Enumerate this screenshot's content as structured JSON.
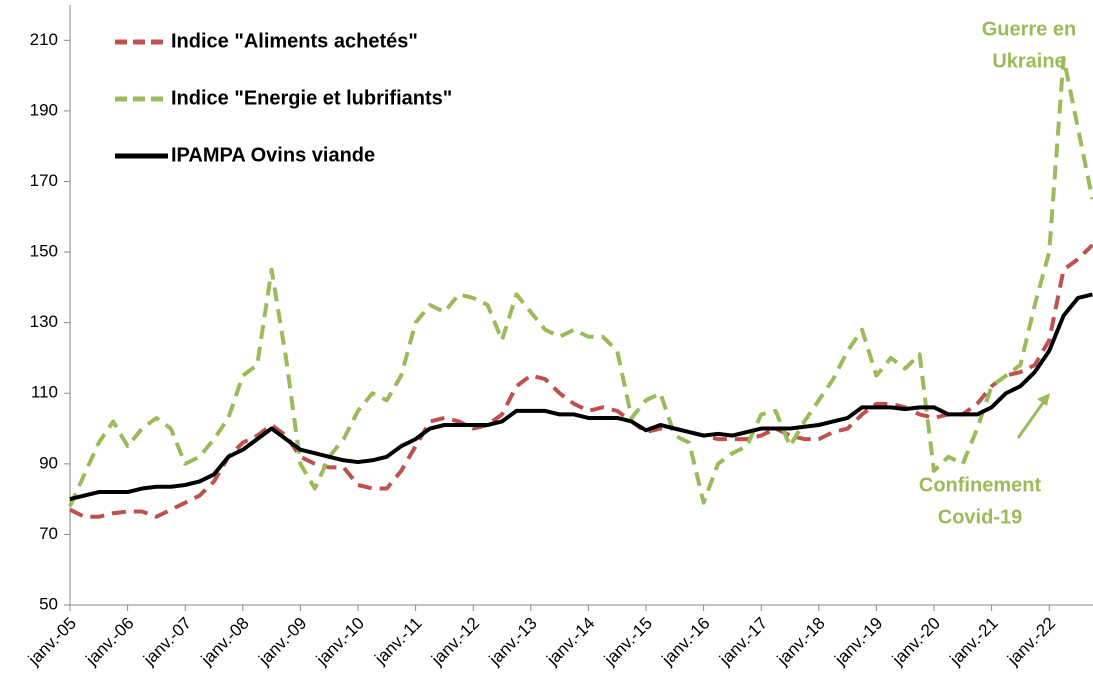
{
  "chart_data": {
    "type": "line",
    "categories": [
      "janv.-05",
      null,
      null,
      null,
      "janv.-06",
      null,
      null,
      null,
      "janv.-07",
      null,
      null,
      null,
      "janv.-08",
      null,
      null,
      null,
      "janv.-09",
      null,
      null,
      null,
      "janv.-10",
      null,
      null,
      null,
      "janv.-11",
      null,
      null,
      null,
      "janv.-12",
      null,
      null,
      null,
      "janv.-13",
      null,
      null,
      null,
      "janv.-14",
      null,
      null,
      null,
      "janv.-15",
      null,
      null,
      null,
      "janv.-16",
      null,
      null,
      null,
      "janv.-17",
      null,
      null,
      null,
      "janv.-18",
      null,
      null,
      null,
      "janv.-19",
      null,
      null,
      null,
      "janv.-20",
      null,
      null,
      null,
      "janv.-21",
      null,
      null,
      null,
      "janv.-22",
      null,
      null,
      null
    ],
    "series": [
      {
        "name": "Indice \"Aliments achetés\"",
        "color": "#c0504d",
        "dash": true,
        "values": [
          77,
          75,
          75,
          76,
          76.5,
          76.5,
          75,
          77,
          79,
          81,
          85,
          92,
          96,
          98,
          101,
          98,
          92,
          90,
          89,
          89,
          84,
          83,
          83,
          88,
          95,
          102,
          103,
          102,
          100,
          101,
          104,
          112,
          115,
          114,
          110,
          107,
          105,
          106,
          105,
          102,
          99,
          100,
          100,
          99,
          98,
          97,
          97,
          97,
          98,
          100,
          98,
          97,
          97,
          99,
          100,
          104,
          107,
          107,
          106,
          104,
          103,
          104,
          104,
          107,
          112,
          115,
          116,
          118,
          125,
          145,
          148,
          152
        ]
      },
      {
        "name": "Indice \"Energie et lubrifiants\"",
        "color": "#9bbb59",
        "dash": true,
        "values": [
          78,
          87,
          96,
          102,
          95,
          100,
          103,
          100,
          90,
          92,
          97,
          103,
          115,
          118,
          145,
          120,
          90,
          83,
          92,
          97,
          105,
          110,
          108,
          115,
          130,
          135,
          133,
          138,
          137,
          135,
          125,
          138,
          133,
          128,
          126,
          128,
          126,
          126,
          122,
          103,
          108,
          110,
          98,
          96,
          79,
          90,
          93,
          95,
          104,
          105,
          95,
          102,
          108,
          114,
          122,
          128,
          115,
          120,
          117,
          121,
          88,
          92,
          90,
          100,
          112,
          115,
          118,
          135,
          150,
          205,
          185,
          165
        ]
      },
      {
        "name": "IPAMPA Ovins viande",
        "color": "#000000",
        "dash": false,
        "values": [
          80,
          81,
          82,
          82,
          82,
          83,
          83.5,
          83.5,
          84,
          85,
          87,
          92,
          94,
          97,
          100,
          97,
          94,
          93,
          92,
          91,
          90.5,
          91,
          92,
          95,
          97,
          100,
          101,
          101,
          101,
          101,
          102,
          105,
          105,
          105,
          104,
          104,
          103,
          103,
          103,
          102,
          99.5,
          101,
          100,
          99,
          98,
          98.5,
          98,
          99,
          100,
          100,
          100,
          100.5,
          101,
          102,
          103,
          106,
          106,
          106,
          105.5,
          106,
          106,
          104,
          104,
          104,
          106,
          110,
          112,
          116,
          122,
          132,
          137,
          138
        ]
      }
    ],
    "ylim": [
      50,
      220
    ],
    "yticks": [
      50,
      70,
      90,
      110,
      130,
      150,
      170,
      190,
      210
    ],
    "annotations": [
      [
        "Guerre en",
        "Ukraine"
      ],
      [
        "Confinement",
        "Covid-19"
      ]
    ]
  }
}
